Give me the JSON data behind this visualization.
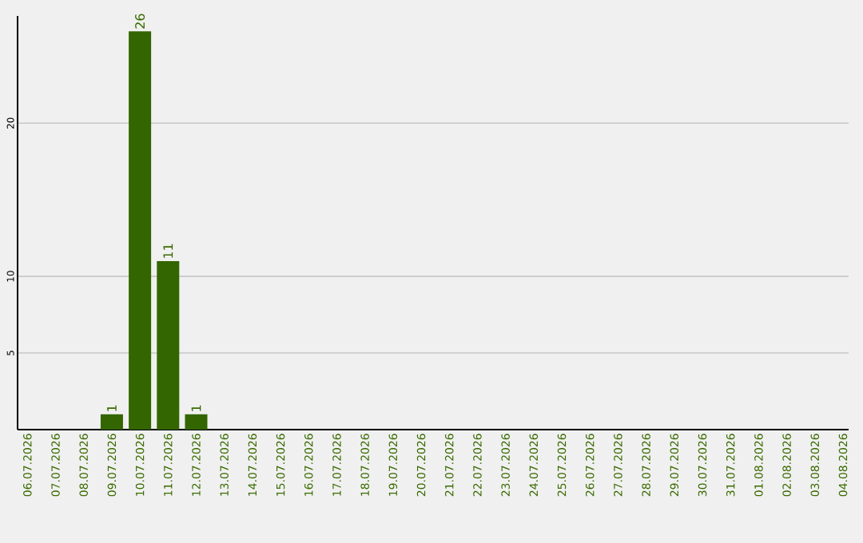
{
  "chart_data": {
    "type": "bar",
    "categories": [
      "06.07.2026",
      "07.07.2026",
      "08.07.2026",
      "09.07.2026",
      "10.07.2026",
      "11.07.2026",
      "12.07.2026",
      "13.07.2026",
      "14.07.2026",
      "15.07.2026",
      "16.07.2026",
      "17.07.2026",
      "18.07.2026",
      "19.07.2026",
      "20.07.2026",
      "21.07.2026",
      "22.07.2026",
      "23.07.2026",
      "24.07.2026",
      "25.07.2026",
      "26.07.2026",
      "27.07.2026",
      "28.07.2026",
      "29.07.2026",
      "30.07.2026",
      "31.07.2026",
      "01.08.2026",
      "02.08.2026",
      "03.08.2026",
      "04.08.2026"
    ],
    "values": [
      0,
      0,
      0,
      1,
      26,
      11,
      1,
      0,
      0,
      0,
      0,
      0,
      0,
      0,
      0,
      0,
      0,
      0,
      0,
      0,
      0,
      0,
      0,
      0,
      0,
      0,
      0,
      0,
      0,
      0
    ],
    "value_labels": [
      null,
      null,
      null,
      "1",
      "26",
      "11",
      "1",
      null,
      null,
      null,
      null,
      null,
      null,
      null,
      null,
      null,
      null,
      null,
      null,
      null,
      null,
      null,
      null,
      null,
      null,
      null,
      null,
      null,
      null,
      null
    ],
    "color": "#336600",
    "ylim": [
      0,
      27
    ],
    "yticks": [
      5,
      10,
      20
    ],
    "grid": "y"
  }
}
